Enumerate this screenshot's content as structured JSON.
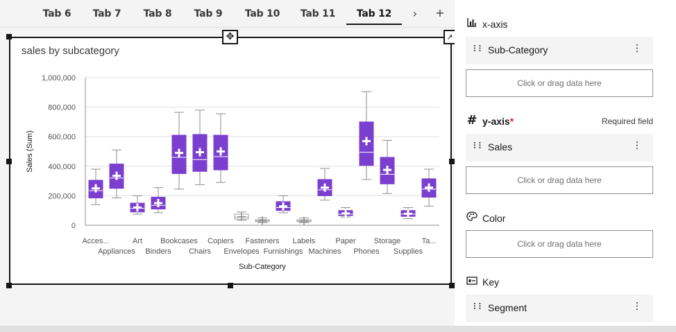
{
  "tabs": [
    {
      "label": "Tab 6",
      "active": false
    },
    {
      "label": "Tab 7",
      "active": false
    },
    {
      "label": "Tab 8",
      "active": false
    },
    {
      "label": "Tab 9",
      "active": false
    },
    {
      "label": "Tab 10",
      "active": false
    },
    {
      "label": "Tab 11",
      "active": false
    },
    {
      "label": "Tab 12",
      "active": true
    }
  ],
  "tabbar": {
    "next_icon": "chevron-right-icon",
    "add_icon": "add-icon"
  },
  "widget": {
    "title": "sales by subcategory"
  },
  "chart_data": {
    "type": "boxplot",
    "title": "sales by subcategory",
    "xlabel": "Sub-Category",
    "ylabel": "Sales (Sum)",
    "ylim": [
      0,
      1000000
    ],
    "yticks": [
      "1,000,000",
      "800,000",
      "600,000",
      "400,000",
      "200,000",
      "0"
    ],
    "ytick_values": [
      1000000,
      800000,
      600000,
      400000,
      200000,
      0
    ],
    "grid": true,
    "box_color": "#7b3fcf",
    "categories": [
      "Acces...",
      "Appliances",
      "Art",
      "Binders",
      "Bookcases",
      "Chairs",
      "Copiers",
      "Envelopes",
      "Fasteners",
      "Furnishings",
      "Labels",
      "Machines",
      "Paper",
      "Phones",
      "Storage",
      "Supplies",
      "Ta..."
    ],
    "boxes": [
      {
        "min": 140000,
        "q1": 185000,
        "median": 235000,
        "q3": 305000,
        "max": 380000,
        "mean": 250000
      },
      {
        "min": 185000,
        "q1": 250000,
        "median": 320000,
        "q3": 415000,
        "max": 510000,
        "mean": 335000
      },
      {
        "min": 75000,
        "q1": 90000,
        "median": 115000,
        "q3": 150000,
        "max": 200000,
        "mean": 120000
      },
      {
        "min": 85000,
        "q1": 110000,
        "median": 135000,
        "q3": 190000,
        "max": 255000,
        "mean": 150000
      },
      {
        "min": 245000,
        "q1": 350000,
        "median": 460000,
        "q3": 610000,
        "max": 765000,
        "mean": 490000
      },
      {
        "min": 275000,
        "q1": 365000,
        "median": 445000,
        "q3": 615000,
        "max": 780000,
        "mean": 495000
      },
      {
        "min": 290000,
        "q1": 375000,
        "median": 465000,
        "q3": 610000,
        "max": 755000,
        "mean": 500000
      },
      {
        "min": 35000,
        "q1": 42000,
        "median": 55000,
        "q3": 75000,
        "max": 90000,
        "mean": 58000
      },
      {
        "min": 18000,
        "q1": 24000,
        "median": 30000,
        "q3": 38000,
        "max": 50000,
        "mean": 32000
      },
      {
        "min": 85000,
        "q1": 100000,
        "median": 120000,
        "q3": 160000,
        "max": 200000,
        "mean": 128000
      },
      {
        "min": 18000,
        "q1": 24000,
        "median": 30000,
        "q3": 38000,
        "max": 50000,
        "mean": 30000
      },
      {
        "min": 170000,
        "q1": 200000,
        "median": 240000,
        "q3": 310000,
        "max": 385000,
        "mean": 255000
      },
      {
        "min": 55000,
        "q1": 65000,
        "median": 75000,
        "q3": 100000,
        "max": 120000,
        "mean": 80000
      },
      {
        "min": 310000,
        "q1": 405000,
        "median": 495000,
        "q3": 700000,
        "max": 905000,
        "mean": 570000
      },
      {
        "min": 215000,
        "q1": 280000,
        "median": 345000,
        "q3": 460000,
        "max": 575000,
        "mean": 375000
      },
      {
        "min": 45000,
        "q1": 60000,
        "median": 75000,
        "q3": 100000,
        "max": 120000,
        "mean": 78000
      },
      {
        "min": 130000,
        "q1": 190000,
        "median": 245000,
        "q3": 315000,
        "max": 380000,
        "mean": 255000
      }
    ]
  },
  "panel": {
    "xaxis": {
      "icon": "bar-chart-icon",
      "label": "x-axis",
      "field": "Sub-Category",
      "dropzone": "Click or drag data here"
    },
    "yaxis": {
      "icon": "hash-icon",
      "label": "y-axis",
      "required_mark": "*",
      "required_note": "Required field",
      "field": "Sales",
      "dropzone": "Click or drag data here"
    },
    "color": {
      "icon": "palette-icon",
      "label": "Color",
      "dropzone": "Click or drag data here"
    },
    "key": {
      "icon": "key-icon",
      "label": "Key",
      "field": "Segment"
    }
  }
}
